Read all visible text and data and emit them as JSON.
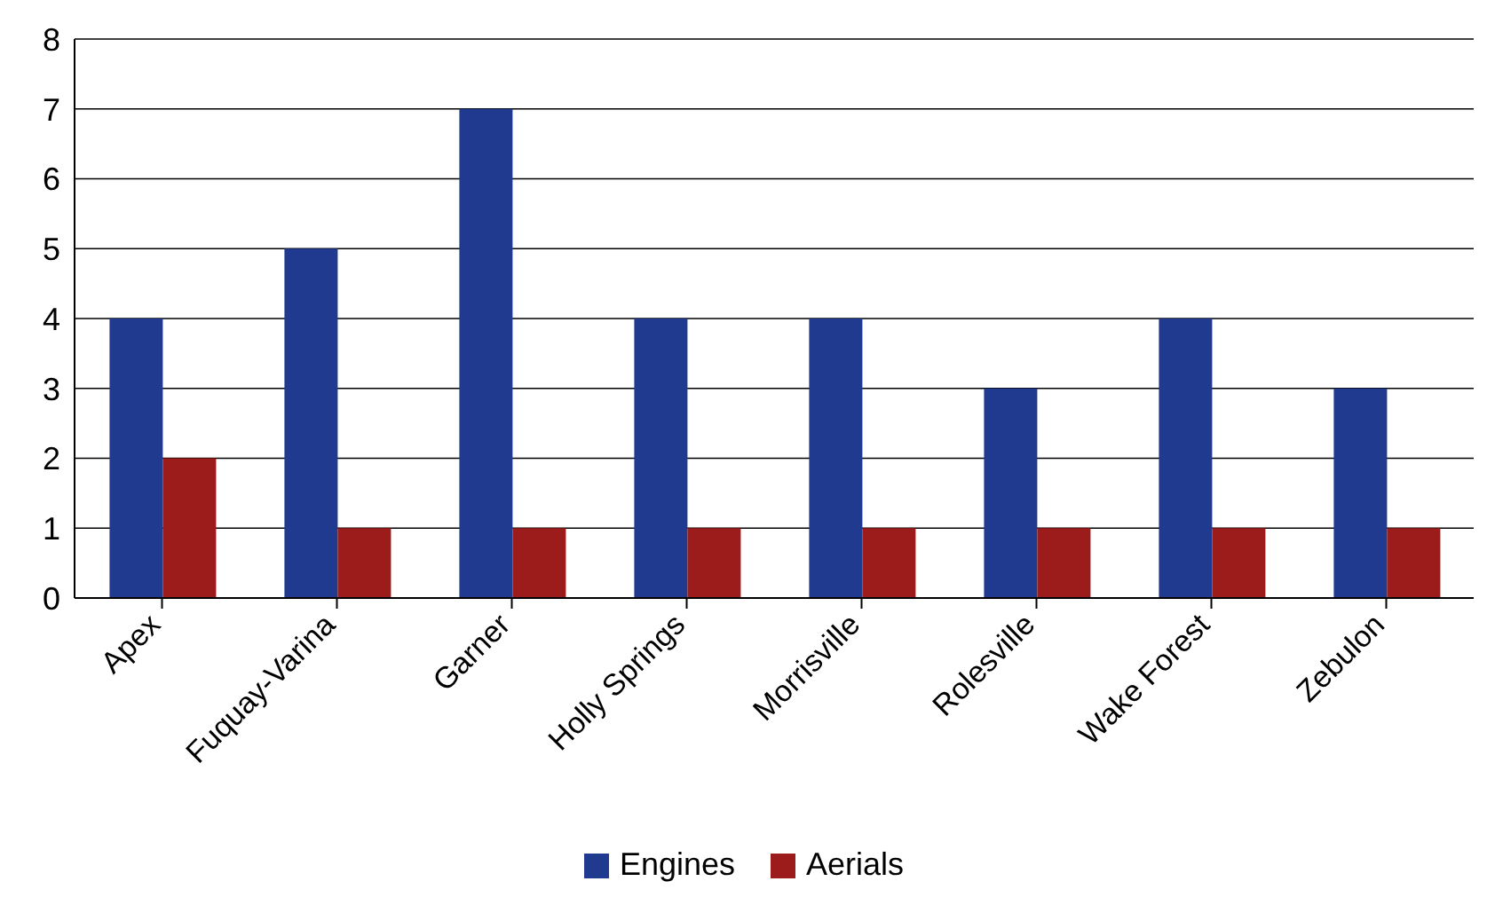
{
  "chart_data": {
    "type": "bar",
    "categories": [
      "Apex",
      "Fuquay-Varina",
      "Garner",
      "Holly Springs",
      "Morrisville",
      "Rolesville",
      "Wake Forest",
      "Zebulon"
    ],
    "series": [
      {
        "name": "Engines",
        "color": "#1f3a8f",
        "values": [
          4,
          5,
          7,
          4,
          4,
          3,
          4,
          3
        ]
      },
      {
        "name": "Aerials",
        "color": "#9c1c1c",
        "values": [
          2,
          1,
          1,
          1,
          1,
          1,
          1,
          1
        ]
      }
    ],
    "ylim": [
      0,
      8
    ],
    "yticks": [
      0,
      1,
      2,
      3,
      4,
      5,
      6,
      7,
      8
    ],
    "grid": "y",
    "legend": "bottom"
  }
}
